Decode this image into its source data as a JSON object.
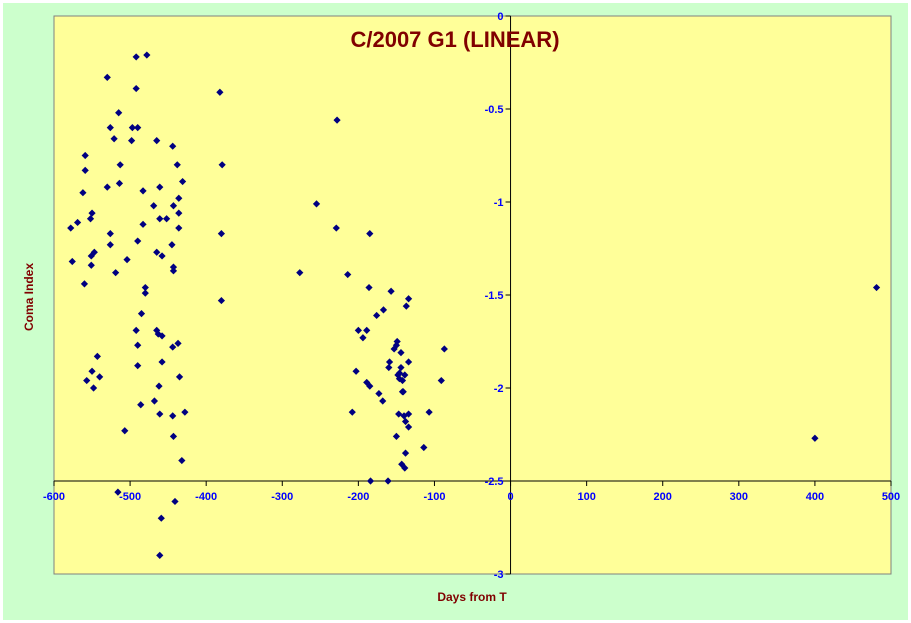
{
  "colors": {
    "chart_area": "#ccffcc",
    "plot_area": "#ffff99",
    "axis": "#000000",
    "marker": "#000080",
    "title": "#800000",
    "tick": "#0000ff"
  },
  "chart_data": {
    "type": "scatter",
    "title": "C/2007 G1 (LINEAR)",
    "xlabel": "Days from T",
    "ylabel": "Coma Index",
    "xlim": [
      -600,
      500
    ],
    "ylim": [
      -3,
      0
    ],
    "x_ticks": [
      -600,
      -500,
      -400,
      -300,
      -200,
      -100,
      0,
      100,
      200,
      300,
      400,
      500
    ],
    "y_ticks": [
      0,
      -0.5,
      -1,
      -1.5,
      -2,
      -2.5,
      -3
    ],
    "x_tick_labels": [
      "-600",
      "-500",
      "-400",
      "-300",
      "-200",
      "-100",
      "0",
      "100",
      "200",
      "300",
      "400",
      "500"
    ],
    "y_tick_labels": [
      "0",
      "-0.5",
      "-1",
      "-1.5",
      "-2",
      "-2.5",
      "-3"
    ],
    "x_axis_crosses_y_at": -2.5,
    "y_axis_crosses_x_at": 0,
    "grid": false,
    "legend": "none",
    "marker": "diamond",
    "series": [
      {
        "points": [
          [
            -492,
            -0.22
          ],
          [
            -478,
            -0.21
          ],
          [
            -530,
            -0.33
          ],
          [
            -492,
            -0.39
          ],
          [
            -382,
            -0.41
          ],
          [
            -515,
            -0.52
          ],
          [
            -228,
            -0.56
          ],
          [
            -526,
            -0.6
          ],
          [
            -497,
            -0.6
          ],
          [
            -490,
            -0.6
          ],
          [
            -521,
            -0.66
          ],
          [
            -498,
            -0.67
          ],
          [
            -465,
            -0.67
          ],
          [
            -444,
            -0.7
          ],
          [
            -559,
            -0.75
          ],
          [
            -513,
            -0.8
          ],
          [
            -438,
            -0.8
          ],
          [
            -379,
            -0.8
          ],
          [
            -559,
            -0.83
          ],
          [
            -514,
            -0.9
          ],
          [
            -431,
            -0.89
          ],
          [
            -530,
            -0.92
          ],
          [
            -461,
            -0.92
          ],
          [
            -562,
            -0.95
          ],
          [
            -483,
            -0.94
          ],
          [
            -436,
            -0.98
          ],
          [
            -469,
            -1.02
          ],
          [
            -443,
            -1.02
          ],
          [
            -255,
            -1.01
          ],
          [
            -550,
            -1.06
          ],
          [
            -436,
            -1.06
          ],
          [
            -552,
            -1.09
          ],
          [
            -461,
            -1.09
          ],
          [
            -452,
            -1.09
          ],
          [
            -569,
            -1.11
          ],
          [
            -483,
            -1.12
          ],
          [
            -578,
            -1.14
          ],
          [
            -436,
            -1.14
          ],
          [
            -229,
            -1.14
          ],
          [
            -526,
            -1.17
          ],
          [
            -380,
            -1.17
          ],
          [
            -185,
            -1.17
          ],
          [
            -490,
            -1.21
          ],
          [
            -526,
            -1.23
          ],
          [
            -445,
            -1.23
          ],
          [
            -547,
            -1.27
          ],
          [
            -465,
            -1.27
          ],
          [
            -551,
            -1.29
          ],
          [
            -458,
            -1.29
          ],
          [
            -576,
            -1.32
          ],
          [
            -504,
            -1.31
          ],
          [
            -551,
            -1.34
          ],
          [
            -443,
            -1.35
          ],
          [
            -519,
            -1.38
          ],
          [
            -443,
            -1.37
          ],
          [
            -277,
            -1.38
          ],
          [
            -214,
            -1.39
          ],
          [
            -560,
            -1.44
          ],
          [
            -480,
            -1.46
          ],
          [
            -480,
            -1.49
          ],
          [
            -186,
            -1.46
          ],
          [
            -157,
            -1.48
          ],
          [
            -380,
            -1.53
          ],
          [
            -134,
            -1.52
          ],
          [
            -137,
            -1.56
          ],
          [
            -167,
            -1.58
          ],
          [
            -485,
            -1.6
          ],
          [
            -176,
            -1.61
          ],
          [
            -465,
            -1.69
          ],
          [
            -492,
            -1.69
          ],
          [
            -200,
            -1.69
          ],
          [
            -189,
            -1.69
          ],
          [
            -463,
            -1.71
          ],
          [
            -458,
            -1.72
          ],
          [
            -194,
            -1.73
          ],
          [
            -149,
            -1.75
          ],
          [
            -150,
            -1.77
          ],
          [
            -437,
            -1.76
          ],
          [
            -490,
            -1.77
          ],
          [
            -444,
            -1.78
          ],
          [
            -153,
            -1.79
          ],
          [
            -87,
            -1.79
          ],
          [
            -144,
            -1.81
          ],
          [
            -543,
            -1.83
          ],
          [
            -458,
            -1.86
          ],
          [
            -134,
            -1.86
          ],
          [
            -159,
            -1.86
          ],
          [
            -160,
            -1.89
          ],
          [
            -490,
            -1.88
          ],
          [
            -144,
            -1.89
          ],
          [
            -550,
            -1.91
          ],
          [
            -203,
            -1.91
          ],
          [
            -146,
            -1.92
          ],
          [
            -148,
            -1.93
          ],
          [
            -139,
            -1.93
          ],
          [
            -540,
            -1.94
          ],
          [
            -435,
            -1.94
          ],
          [
            -146,
            -1.95
          ],
          [
            -557,
            -1.96
          ],
          [
            -142,
            -1.96
          ],
          [
            -91,
            -1.96
          ],
          [
            -189,
            -1.97
          ],
          [
            -462,
            -1.99
          ],
          [
            -548,
            -2.0
          ],
          [
            -185,
            -1.99
          ],
          [
            -141,
            -2.02
          ],
          [
            -142,
            -2.02
          ],
          [
            -173,
            -2.03
          ],
          [
            -168,
            -2.07
          ],
          [
            -468,
            -2.07
          ],
          [
            -486,
            -2.09
          ],
          [
            -147,
            -2.14
          ],
          [
            -140,
            -2.15
          ],
          [
            -134,
            -2.14
          ],
          [
            -138,
            -2.18
          ],
          [
            -208,
            -2.13
          ],
          [
            -461,
            -2.14
          ],
          [
            -444,
            -2.15
          ],
          [
            -428,
            -2.13
          ],
          [
            -107,
            -2.13
          ],
          [
            -134,
            -2.21
          ],
          [
            -507,
            -2.23
          ],
          [
            -443,
            -2.26
          ],
          [
            -150,
            -2.26
          ],
          [
            -114,
            -2.32
          ],
          [
            -138,
            -2.35
          ],
          [
            -432,
            -2.39
          ],
          [
            -143,
            -2.41
          ],
          [
            -139,
            -2.43
          ],
          [
            -184,
            -2.5
          ],
          [
            -161,
            -2.5
          ],
          [
            -516,
            -2.56
          ],
          [
            -441,
            -2.61
          ],
          [
            -459,
            -2.7
          ],
          [
            -461,
            -2.9
          ],
          [
            400,
            -2.27
          ],
          [
            481,
            -1.46
          ]
        ]
      }
    ]
  }
}
